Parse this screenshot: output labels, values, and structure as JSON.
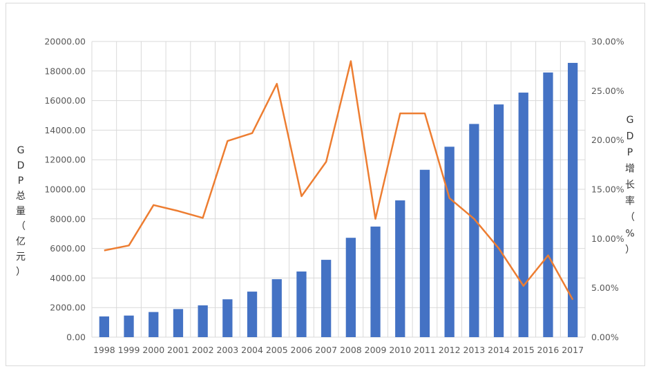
{
  "chart_data": {
    "type": "bar",
    "categories": [
      "1998",
      "1999",
      "2000",
      "2001",
      "2002",
      "2003",
      "2004",
      "2005",
      "2006",
      "2007",
      "2008",
      "2009",
      "2010",
      "2011",
      "2012",
      "2013",
      "2014",
      "2015",
      "2016",
      "2017"
    ],
    "series": [
      {
        "name": "",
        "type": "bar",
        "axis": "left",
        "color": "#4472C4",
        "values": [
          1400,
          1460,
          1700,
          1900,
          2150,
          2560,
          3080,
          3920,
          4440,
          5230,
          6720,
          7480,
          9250,
          11320,
          12880,
          14420,
          15740,
          16540,
          17900,
          18550
        ]
      },
      {
        "name": "",
        "type": "line",
        "axis": "right",
        "color": "#ED7D31",
        "values": [
          8.8,
          9.3,
          13.4,
          12.8,
          12.1,
          19.9,
          20.7,
          25.7,
          14.3,
          17.8,
          28.0,
          12.0,
          22.7,
          22.7,
          14.1,
          12.0,
          9.0,
          5.2,
          8.3,
          3.8
        ]
      }
    ],
    "ylabel": "GDP总量（亿元）",
    "ylabel_chars": [
      "G",
      "D",
      "P",
      "总",
      "量",
      "（",
      "亿",
      "元",
      "）"
    ],
    "y2label": "GDP增长率（%）",
    "y2label_chars": [
      "G",
      "D",
      "P",
      "增",
      "长",
      "率",
      "（",
      "%",
      "）"
    ],
    "ylim": [
      0,
      20000
    ],
    "y2lim": [
      0,
      30
    ],
    "yticks": [
      "0.00",
      "2000.00",
      "4000.00",
      "6000.00",
      "8000.00",
      "10000.00",
      "12000.00",
      "14000.00",
      "16000.00",
      "18000.00",
      "20000.00"
    ],
    "y2ticks": [
      "0.00%",
      "5.00%",
      "10.00%",
      "15.00%",
      "20.00%",
      "25.00%",
      "30.00%"
    ],
    "grid": true
  }
}
